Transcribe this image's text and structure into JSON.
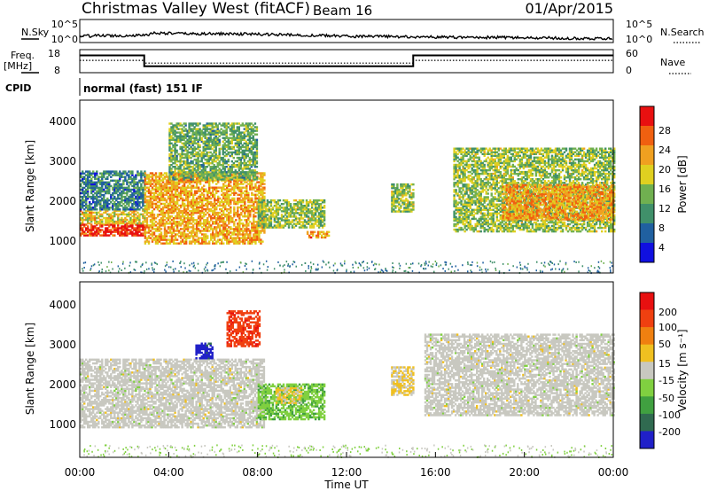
{
  "header": {
    "station": "Christmas Valley West (fitACF)",
    "beam": "Beam 16",
    "date": "01/Apr/2015"
  },
  "noise_panel": {
    "left_label": "N.Sky",
    "right_label": "N.Search",
    "left_ticks": [
      "10^5",
      "10^0"
    ],
    "right_ticks": [
      "10^5",
      "10^0"
    ]
  },
  "freq_panel": {
    "left_label_1": "Freq.",
    "left_label_2": "[MHz]",
    "right_label": "Nave",
    "left_ticks": [
      "18",
      "8"
    ],
    "right_ticks": [
      "60",
      "0"
    ]
  },
  "cpid": {
    "label": "CPID",
    "text": "normal (fast) 151 IF"
  },
  "x_axis": {
    "label": "Time UT",
    "ticks": [
      "00:00",
      "04:00",
      "08:00",
      "12:00",
      "16:00",
      "20:00",
      "00:00"
    ]
  },
  "power_panel": {
    "ylabel": "Slant Range [km]",
    "yticks": [
      "4000",
      "3000",
      "2000",
      "1000"
    ],
    "colorbar_label": "Power [dB]",
    "colorbar_ticks": [
      "28",
      "24",
      "20",
      "16",
      "12",
      "8",
      "4"
    ]
  },
  "velocity_panel": {
    "ylabel": "Slant Range [km]",
    "yticks": [
      "4000",
      "3000",
      "2000",
      "1000"
    ],
    "colorbar_label": "Velocity [m s⁻¹]",
    "colorbar_ticks": [
      "200",
      "100",
      "50",
      "15",
      "-15",
      "-50",
      "-100",
      "-200"
    ]
  },
  "colors": {
    "power_scale": [
      "#1010e0",
      "#2060a0",
      "#40906a",
      "#70b050",
      "#e0d020",
      "#f0a020",
      "#f06010",
      "#e81010"
    ],
    "velocity_scale": [
      "#2020c8",
      "#306a50",
      "#40a040",
      "#80d040",
      "#c8c8c0",
      "#f0c020",
      "#f08010",
      "#f04010",
      "#e81010"
    ]
  },
  "chart_data": [
    {
      "type": "line",
      "panel": "noise",
      "x_unit": "hours UT",
      "xlim": [
        0,
        24
      ],
      "series": [
        {
          "name": "N.Sky",
          "x": [
            0,
            1,
            2,
            3,
            3.3,
            4,
            5,
            6,
            7,
            8,
            9,
            10,
            11,
            12,
            13,
            14,
            15,
            16,
            17,
            18,
            19,
            20,
            21,
            22,
            23,
            24
          ],
          "values": [
            0.28,
            0.3,
            0.3,
            0.32,
            0.42,
            0.4,
            0.38,
            0.38,
            0.38,
            0.36,
            0.34,
            0.32,
            0.3,
            0.28,
            0.26,
            0.26,
            0.24,
            0.24,
            0.22,
            0.22,
            0.22,
            0.2,
            0.2,
            0.18,
            0.18,
            0.18
          ]
        }
      ]
    },
    {
      "type": "line",
      "panel": "frequency",
      "x_unit": "hours UT",
      "ylim_left": [
        8,
        18
      ],
      "ylim_right": [
        0,
        60
      ],
      "series": [
        {
          "name": "Freq.",
          "x": [
            0,
            2.9,
            2.9,
            15.0,
            15.0,
            24
          ],
          "values": [
            15.5,
            15.5,
            10.8,
            10.8,
            15.5,
            15.5
          ]
        },
        {
          "name": "Nave",
          "x": [
            0,
            2.9,
            2.9,
            15.0,
            15.0,
            24
          ],
          "values": [
            32,
            32,
            25,
            25,
            32,
            32
          ]
        }
      ]
    },
    {
      "type": "heatmap",
      "panel": "power",
      "x_unit": "hours UT",
      "y_unit": "km",
      "xlim": [
        0,
        24
      ],
      "ylim": [
        180,
        4500
      ],
      "value_unit": "dB",
      "zlim": [
        0,
        30
      ],
      "regions": [
        {
          "t0": 0.0,
          "t1": 2.9,
          "r0": 1100,
          "r1": 1400,
          "value": 27
        },
        {
          "t0": 0.0,
          "t1": 2.9,
          "r0": 1400,
          "r1": 1750,
          "value": 18
        },
        {
          "t0": 0.0,
          "t1": 2.9,
          "r0": 1750,
          "r1": 2700,
          "value": 8
        },
        {
          "t0": 2.9,
          "t1": 8.3,
          "r0": 900,
          "r1": 2700,
          "value": 20
        },
        {
          "t0": 4.0,
          "t1": 8.0,
          "r0": 2500,
          "r1": 3900,
          "value": 12
        },
        {
          "t0": 8.0,
          "t1": 11.0,
          "r0": 1300,
          "r1": 2000,
          "value": 14
        },
        {
          "t0": 10.2,
          "t1": 11.2,
          "r0": 1050,
          "r1": 1200,
          "value": 22
        },
        {
          "t0": 14.0,
          "t1": 15.0,
          "r0": 1700,
          "r1": 2400,
          "value": 14
        },
        {
          "t0": 16.8,
          "t1": 24.0,
          "r0": 1200,
          "r1": 3300,
          "value": 14
        },
        {
          "t0": 19.0,
          "t1": 24.0,
          "r0": 1500,
          "r1": 2400,
          "value": 21
        }
      ]
    },
    {
      "type": "heatmap",
      "panel": "velocity",
      "x_unit": "hours UT",
      "y_unit": "km",
      "xlim": [
        0,
        24
      ],
      "ylim": [
        180,
        4500
      ],
      "value_unit": "m s-1",
      "zlim": [
        -250,
        250
      ],
      "regions": [
        {
          "t0": 0.0,
          "t1": 8.3,
          "r0": 900,
          "r1": 2600,
          "value": 0
        },
        {
          "t0": 5.2,
          "t1": 6.0,
          "r0": 2600,
          "r1": 3000,
          "value": -220
        },
        {
          "t0": 6.6,
          "t1": 8.1,
          "r0": 2900,
          "r1": 3800,
          "value": 180
        },
        {
          "t0": 8.0,
          "t1": 11.0,
          "r0": 1100,
          "r1": 2000,
          "value": -70
        },
        {
          "t0": 8.8,
          "t1": 10.0,
          "r0": 1500,
          "r1": 1900,
          "value": 40
        },
        {
          "t0": 14.0,
          "t1": 15.0,
          "r0": 1700,
          "r1": 2400,
          "value": 35
        },
        {
          "t0": 15.5,
          "t1": 24.0,
          "r0": 1200,
          "r1": 3200,
          "value": 0
        }
      ]
    }
  ]
}
